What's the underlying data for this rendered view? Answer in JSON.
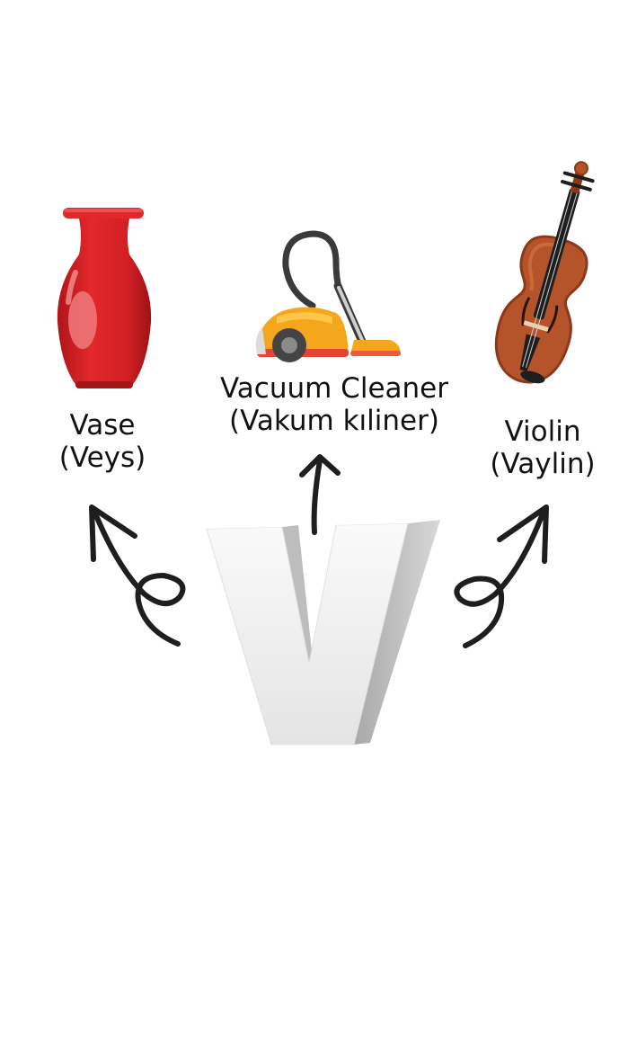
{
  "items": [
    {
      "name": "Vase",
      "pronunciation": "(Veys)",
      "icon": "vase-icon",
      "color": "#d62426"
    },
    {
      "name": "Vacuum Cleaner",
      "pronunciation": "(Vakum kıliner)",
      "icon": "vacuum-cleaner-icon",
      "color": "#f5a819"
    },
    {
      "name": "Violin",
      "pronunciation": "(Vaylin)",
      "icon": "violin-icon",
      "color": "#b5532a"
    }
  ],
  "letter": {
    "icon": "letter-v-3d",
    "face_color": "#f2f2f2",
    "side_color": "#c9c9c9"
  },
  "arrow_color": "#1e1e1e"
}
